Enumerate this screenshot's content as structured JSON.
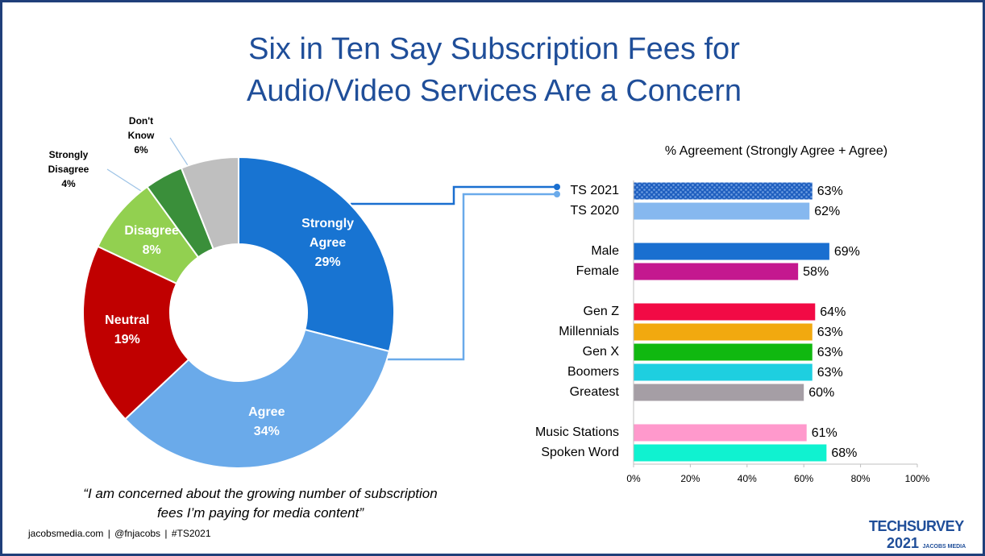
{
  "title": "Six in Ten Say Subscription Fees for Audio/Video Services Are a Concern",
  "quote": "“I am concerned about the growing number of subscription fees I’m paying for media content”",
  "footer": "jacobsmedia.com  |  @fnjacobs  |  #TS2021",
  "logo": {
    "name": "TECHSURVEY",
    "year": "2021",
    "brand": "JACOBS MEDIA"
  },
  "chart_data": [
    {
      "type": "donut",
      "categories": [
        "Strongly Agree",
        "Agree",
        "Neutral",
        "Disagree",
        "Strongly Disagree",
        "Don't Know"
      ],
      "values": [
        29,
        34,
        19,
        8,
        4,
        6
      ],
      "value_labels": [
        "29%",
        "34%",
        "19%",
        "8%",
        "4%",
        "6%"
      ],
      "colors": [
        "#1874d2",
        "#6aaaea",
        "#c00000",
        "#92d050",
        "#3a8f3a",
        "#bfbfbf"
      ]
    },
    {
      "type": "hbar",
      "subtitle": "% Agreement (Strongly Agree + Agree)",
      "categories": [
        "TS 2021",
        "TS 2020",
        "Male",
        "Female",
        "Gen Z",
        "Millennials",
        "Gen X",
        "Boomers",
        "Greatest",
        "Music Stations",
        "Spoken Word"
      ],
      "values": [
        63,
        62,
        69,
        58,
        64,
        63,
        63,
        63,
        60,
        61,
        68
      ],
      "value_labels": [
        "63%",
        "62%",
        "69%",
        "58%",
        "64%",
        "63%",
        "63%",
        "63%",
        "60%",
        "61%",
        "68%"
      ],
      "colors": [
        "#1f5fbf",
        "#86b8ef",
        "#1a6fd0",
        "#c4188f",
        "#f20a45",
        "#f2a90f",
        "#10b810",
        "#1ecfe0",
        "#a59ea5",
        "#ff99cc",
        "#10f2d0"
      ],
      "patterns": [
        "checker",
        null,
        null,
        null,
        null,
        null,
        null,
        null,
        null,
        null,
        null
      ],
      "xlim": [
        0,
        100
      ],
      "xticks": [
        {
          "value": 0,
          "label": "0%"
        },
        {
          "value": 20,
          "label": "20%"
        },
        {
          "value": 40,
          "label": "40%"
        },
        {
          "value": 60,
          "label": "60%"
        },
        {
          "value": 80,
          "label": "80%"
        },
        {
          "value": 100,
          "label": "100%"
        }
      ]
    }
  ]
}
